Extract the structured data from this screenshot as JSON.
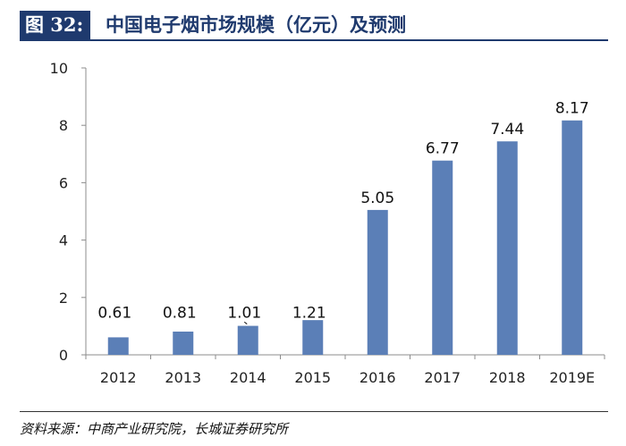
{
  "header": {
    "figure_label": "图 32:",
    "title": "中国电子烟市场规模（亿元）及预测"
  },
  "chart_data": {
    "type": "bar",
    "title": "中国电子烟市场规模（亿元）及预测",
    "categories": [
      "2012",
      "2013",
      "2014",
      "2015",
      "2016",
      "2017",
      "2018",
      "2019E"
    ],
    "values": [
      0.61,
      0.81,
      1.01,
      1.21,
      5.05,
      6.77,
      7.44,
      8.17
    ],
    "value_labels": [
      "0.61",
      "0.81",
      "1.01",
      "1.21",
      "5.05",
      "6.77",
      "7.44",
      "8.17"
    ],
    "ylim": [
      0,
      10
    ],
    "yticks": [
      0,
      2,
      4,
      6,
      8,
      10
    ],
    "xlabel": "",
    "ylabel": "",
    "grid": false,
    "legend": "none",
    "bar_color": "#5b7fb7"
  },
  "source": "资料来源：中商产业研究院，长城证券研究所"
}
